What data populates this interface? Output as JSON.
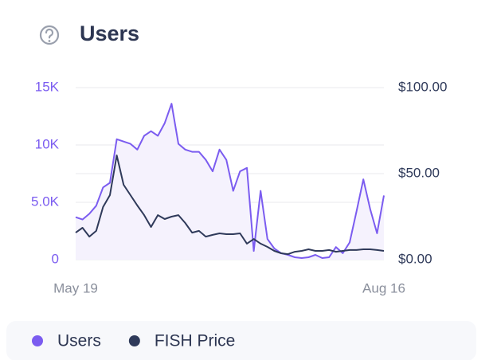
{
  "chart_data": {
    "type": "line",
    "title": "Users",
    "categories": [
      "May 19",
      null,
      null,
      null,
      null,
      null,
      null,
      null,
      null,
      null,
      null,
      null,
      null,
      null,
      null,
      null,
      null,
      null,
      null,
      null,
      null,
      null,
      null,
      null,
      null,
      null,
      null,
      null,
      null,
      null,
      null,
      null,
      null,
      null,
      null,
      null,
      null,
      null,
      null,
      null,
      null,
      null,
      null,
      null,
      null,
      "Aug 16"
    ],
    "series": [
      {
        "name": "Users",
        "color": "#7b5cf0",
        "axis": "y",
        "values": [
          3700,
          3500,
          4000,
          4700,
          6300,
          6700,
          10500,
          10300,
          10100,
          9600,
          10800,
          11200,
          10800,
          11900,
          13600,
          10100,
          9600,
          9400,
          9400,
          8700,
          7700,
          9600,
          8700,
          6000,
          7700,
          8000,
          760,
          6000,
          1800,
          970,
          560,
          420,
          210,
          140,
          210,
          420,
          140,
          210,
          1100,
          560,
          1500,
          4200,
          7000,
          4400,
          2300,
          5600
        ]
      },
      {
        "name": "FISH Price",
        "color": "#2f3a5a",
        "axis": "y2",
        "values": [
          15.7,
          18.5,
          13.4,
          16.7,
          30.6,
          37.5,
          60.6,
          43.5,
          37.5,
          31.5,
          25.9,
          19.0,
          25.9,
          23.6,
          25.0,
          25.9,
          21.3,
          15.7,
          16.7,
          13.4,
          14.4,
          15.3,
          14.8,
          14.8,
          15.3,
          9.3,
          12.0,
          9.3,
          7.4,
          5.1,
          3.7,
          3.2,
          4.6,
          5.1,
          6.0,
          5.1,
          5.1,
          5.6,
          4.6,
          5.1,
          5.6,
          5.6,
          6.0,
          6.0,
          5.6,
          5.1
        ]
      }
    ],
    "ylim": [
      0,
      15000
    ],
    "yticks": [
      0,
      {
        "value": 5000,
        "label": "5.0K"
      },
      {
        "value": 10000,
        "label": "10K"
      },
      {
        "value": 15000,
        "label": "15K"
      }
    ],
    "y2lim": [
      0,
      100
    ],
    "y2ticks": [
      {
        "value": 0,
        "label": "$0.00"
      },
      {
        "value": 50,
        "label": "$50.00"
      },
      {
        "value": 100,
        "label": "$100.00"
      }
    ],
    "grid": true,
    "area_fill": "#f5f2fd"
  }
}
